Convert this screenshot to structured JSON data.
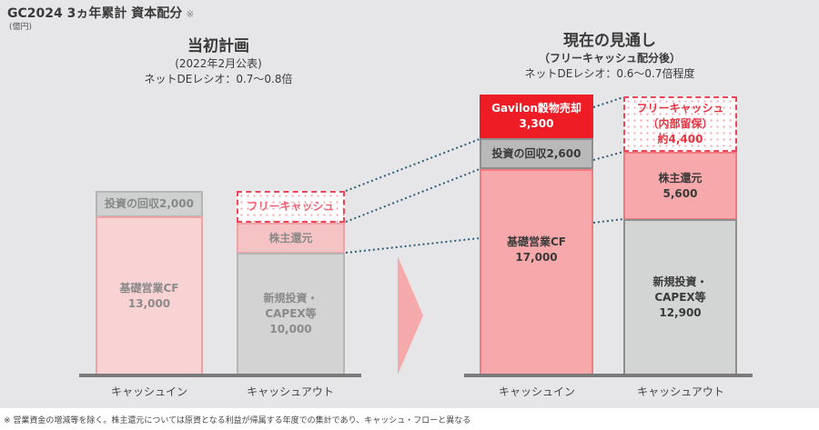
{
  "title": "GC2024 3ヵ年累計 資本配分",
  "title_mark": "※",
  "unit": "(億円)",
  "plan": {
    "heading": "当初計画",
    "sub": "(2022年2月公表)",
    "ratio": "ネットDEレシオ：0.7〜0.8倍",
    "cash_in": {
      "label": "キャッシュイン",
      "recovery": "投資の回収2,000",
      "cf_label": "基礎営業CF",
      "cf_value": "13,000"
    },
    "cash_out": {
      "label": "キャッシュアウト",
      "free_cash": "フリーキャッシュ",
      "returns": "株主還元",
      "capex_l1": "新規投資・",
      "capex_l2": "CAPEX等",
      "capex_value": "10,000"
    }
  },
  "outlook": {
    "heading": "現在の見通し",
    "sub": "（フリーキャッシュ配分後）",
    "ratio": "ネットDEレシオ：0.6〜0.7倍程度",
    "cash_in": {
      "label": "キャッシュイン",
      "gavilon_label": "Gavilon穀物売却",
      "gavilon_value": "3,300",
      "recovery": "投資の回収2,600",
      "cf_label": "基礎営業CF",
      "cf_value": "17,000"
    },
    "cash_out": {
      "label": "キャッシュアウト",
      "free_l1": "フリーキャッシュ",
      "free_l2": "（内部留保）",
      "free_value": "約4,400",
      "returns_label": "株主還元",
      "returns_value": "5,600",
      "capex_l1": "新規投資・",
      "capex_l2": "CAPEX等",
      "capex_value": "12,900"
    }
  },
  "footnote": "※ 営業資金の増減等を除く。株主還元については原資となる利益が帰属する年度での集計であり、キャッシュ・フローと異なる",
  "colors": {
    "red": "#ee1c25",
    "pink": "#f7a8ab",
    "light_pink": "#f9d3d4",
    "gray": "#cfd0d0",
    "line": "#2d5f7a"
  }
}
